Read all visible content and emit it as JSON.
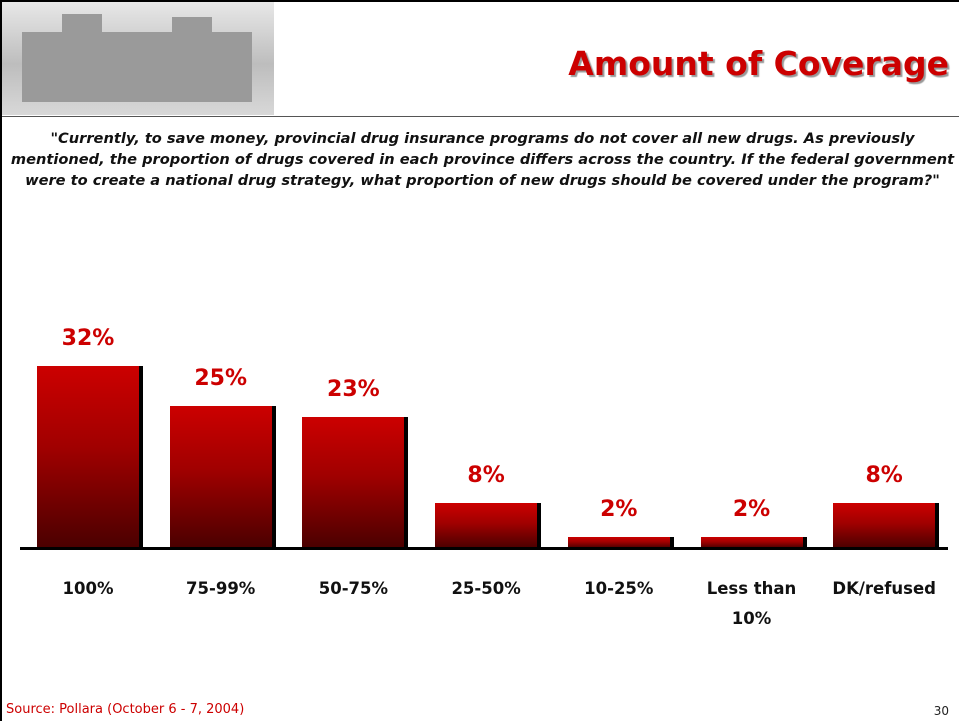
{
  "chart_data": {
    "type": "bar",
    "title": "Amount of Coverage",
    "subtitle": "\"Currently, to save money, provincial drug insurance programs do not cover all new drugs. As previously mentioned, the proportion of drugs covered in each province differs across the country. If the federal government were to create a national drug strategy, what proportion of new drugs should be covered under the program?\"",
    "categories": [
      "100%",
      "75-99%",
      "50-75%",
      "25-50%",
      "10-25%",
      "Less than 10%",
      "DK/refused"
    ],
    "values": [
      32,
      25,
      23,
      8,
      2,
      2,
      8
    ],
    "value_labels": [
      "32%",
      "25%",
      "23%",
      "8%",
      "2%",
      "2%",
      "8%"
    ],
    "color": "#cc0000",
    "source": "Source: Pollara (October 6 - 7, 2004)",
    "page_number": "30"
  }
}
